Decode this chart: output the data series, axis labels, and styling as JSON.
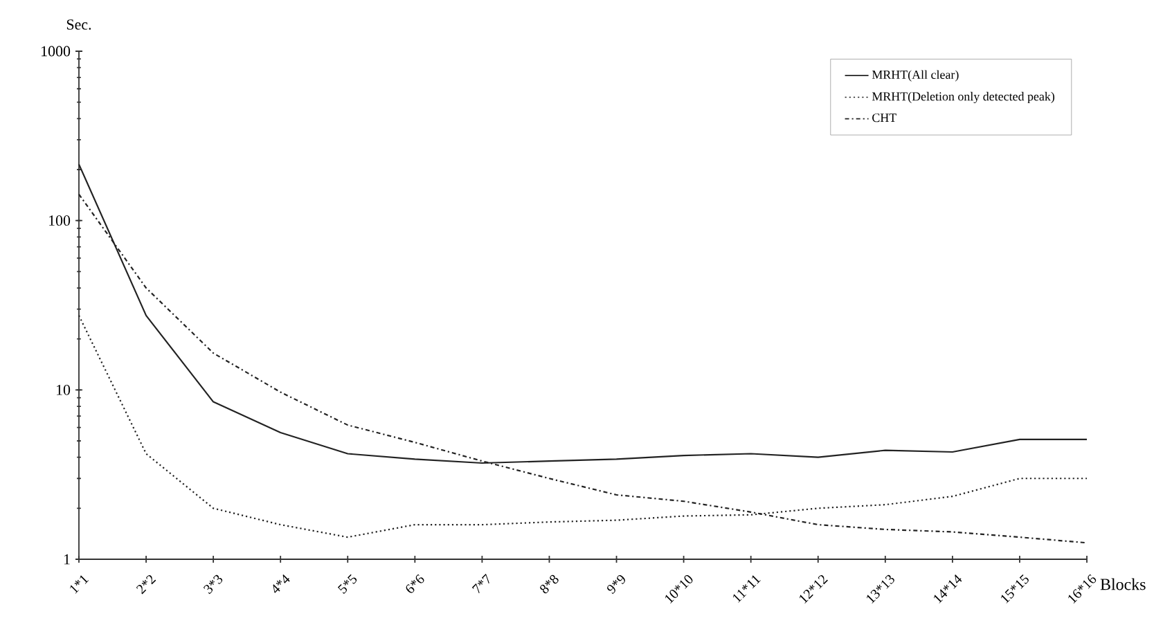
{
  "chart_data": {
    "type": "line",
    "xlabel": "Blocks",
    "ylabel": "Sec.",
    "log": "y",
    "ylim": [
      1,
      1000
    ],
    "yticks": [
      1,
      10,
      100,
      1000
    ],
    "legend": "top right",
    "grid": false,
    "categories": [
      "1*1",
      "2*2",
      "3*3",
      "4*4",
      "5*5",
      "6*6",
      "7*7",
      "8*8",
      "9*9",
      "10*10",
      "11*11",
      "12*12",
      "13*13",
      "14*14",
      "15*15",
      "16*16"
    ],
    "series": [
      {
        "name": "MRHT(All clear)",
        "color": "#222222",
        "line_style": "solid",
        "values": [
          215,
          27.5,
          8.5,
          5.6,
          4.2,
          3.9,
          3.7,
          3.8,
          3.9,
          4.1,
          4.2,
          4.0,
          4.4,
          4.3,
          5.1,
          5.1
        ]
      },
      {
        "name": "MRHT(Deletion only detected peak)",
        "color": "#222222",
        "line_style": "dotted",
        "values": [
          27.5,
          4.2,
          2.0,
          1.6,
          1.35,
          1.6,
          1.6,
          1.66,
          1.7,
          1.8,
          1.83,
          2.0,
          2.1,
          2.35,
          3.0,
          3.0
        ]
      },
      {
        "name": "CHT",
        "color": "#222222",
        "line_style": "dashdot",
        "values": [
          143,
          40,
          16.5,
          9.7,
          6.2,
          4.9,
          3.8,
          3.0,
          2.4,
          2.2,
          1.9,
          1.6,
          1.5,
          1.45,
          1.35,
          1.25
        ]
      }
    ]
  }
}
